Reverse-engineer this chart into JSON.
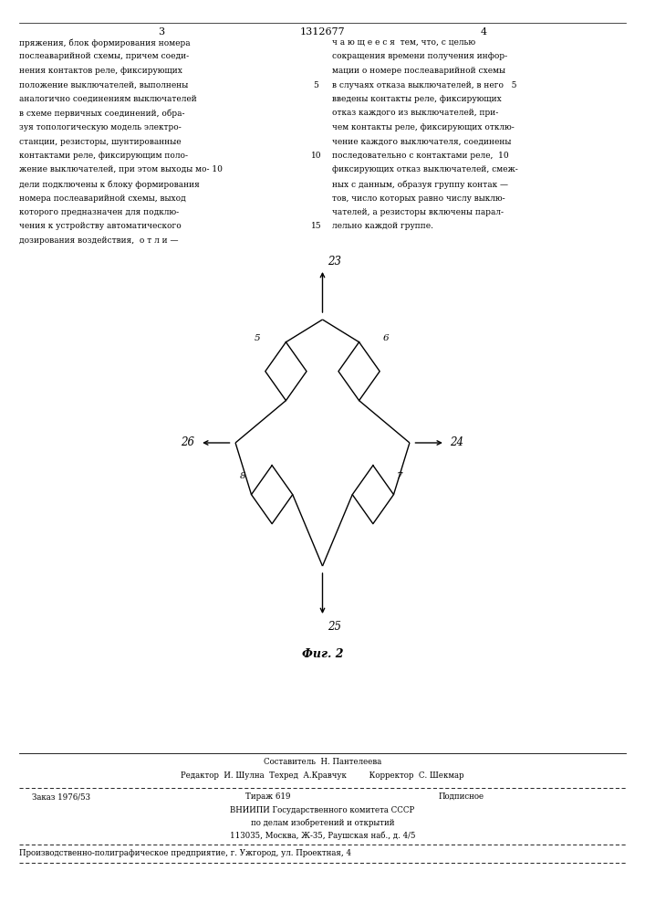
{
  "page_width": 7.07,
  "page_height": 10.0,
  "bg_color": "#ffffff",
  "header_left_col": "3",
  "header_center": "1312677",
  "header_right_col": "4",
  "left_text_lines": [
    "пряжения, блок формирования номера",
    "послеаварийной схемы, причем соеди-",
    "нения контактов реле, фиксирующих",
    "положение выключателей, выполнены",
    "аналогично соединениям выключателей",
    "в схеме первичных соединений, обра-",
    "зуя топологическую модель электро-",
    "станции, резисторы, шунтированные",
    "контактами реле, фиксирующим поло-",
    "жение выключателей, при этом выходы мо- 10",
    "дели подключены к блоку формирования",
    "номера послеаварийной схемы, выход",
    "которого предназначен для подклю-",
    "чения к устройству автоматического",
    "дозирования воздействия,  о т л и —"
  ],
  "right_text_lines": [
    "ч а ю щ е е с я  тем, что, с целью",
    "сокращения времени получения инфор-",
    "мации о номере послеаварийной схемы",
    "в случаях отказа выключателей, в него   5",
    "введены контакты реле, фиксирующих",
    "отказ каждого из выключателей, при-",
    "чем контакты реле, фиксирующих отклю-",
    "чение каждого выключателя, соединены",
    "последовательно с контактами реле,  10",
    "фиксирующих отказ выключателей, смеж-",
    "ных с данным, образуя группу контак —",
    "тов, число которых равно числу выклю-",
    "чателей, а резисторы включены парал-",
    "лельно каждой группе."
  ],
  "fig_caption": "Фиг. 2",
  "node23_label": "23",
  "node24_label": "24",
  "node25_label": "25",
  "node26_label": "26",
  "node5_label": "5",
  "node6_label": "6",
  "node7_label": "7",
  "node8_label": "8",
  "footer_sestavitel": "Составитель  Н. Пантелеева",
  "footer_editor_line": "Редактор  И. Шулна  Техред  А.Кравчук         Корректор  С. Шекмар",
  "footer_zakaz": "Заказ 1976/53",
  "footer_tirazh": "Тираж 619",
  "footer_podpisnoe": "Подписное",
  "footer_vniipи": "ВНИИПИ Государственного комитета СССР",
  "footer_delam": "по делам изобретений и открытий",
  "footer_address": "113035, Москва, Ж-35, Раушская наб., д. 4/5",
  "footer_proizv": "Производственно-полиграфическое предприятие, г. Ужгород, ул. Проектная, 4"
}
